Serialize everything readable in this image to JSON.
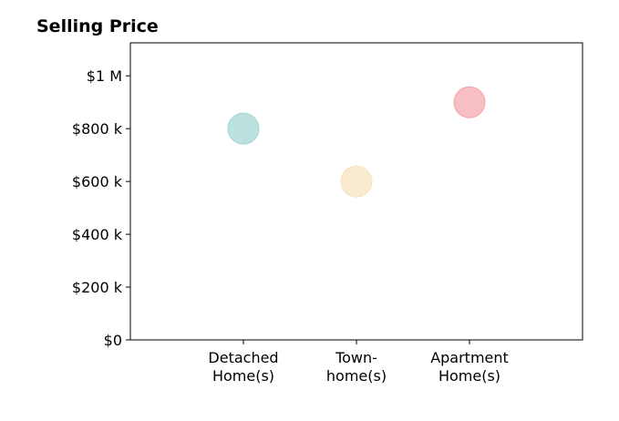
{
  "chart_data": {
    "type": "scatter",
    "title": "Selling Price",
    "xlabel": "",
    "ylabel": "",
    "categories": [
      [
        "Detached",
        "Home(s)"
      ],
      [
        "Town-",
        "home(s)"
      ],
      [
        "Apartment",
        "Home(s)"
      ]
    ],
    "values": [
      800000,
      600000,
      900000
    ],
    "ylim": [
      0,
      1125000
    ],
    "xlim": [
      -1,
      3
    ],
    "yticks": [
      {
        "value": 0,
        "label": "$0"
      },
      {
        "value": 200000,
        "label": "$200 k"
      },
      {
        "value": 400000,
        "label": "$400 k"
      },
      {
        "value": 600000,
        "label": "$600 k"
      },
      {
        "value": 800000,
        "label": "$800 k"
      },
      {
        "value": 1000000,
        "label": "$1 M"
      }
    ],
    "colors": [
      "#8ecfc9",
      "#f4deb0",
      "#f1959b"
    ],
    "grid": false,
    "legend": "none"
  }
}
